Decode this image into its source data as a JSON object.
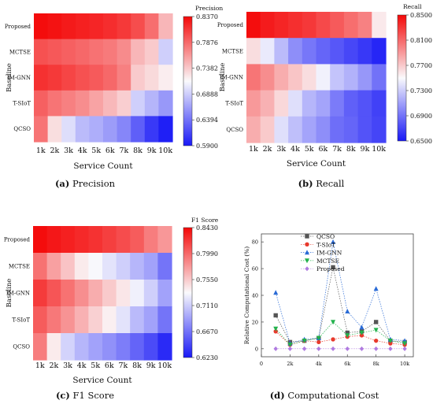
{
  "chart_data": [
    {
      "type": "heatmap",
      "panel_label": "(a)",
      "caption": "Precision",
      "colorbar_title": "Precision",
      "colorbar_ticks": [
        "0.8370",
        "0.7876",
        "0.7382",
        "0.6888",
        "0.6394",
        "0.5900"
      ],
      "range": [
        0.59,
        0.837
      ],
      "xlabel": "Service Count",
      "ylabel": "Baseline",
      "x": [
        "1k",
        "2k",
        "3k",
        "4k",
        "5k",
        "6k",
        "7k",
        "8k",
        "9k",
        "10k"
      ],
      "y": [
        "Proposed",
        "MCTSE",
        "IM-GNN",
        "T-SIoT",
        "QCSO"
      ],
      "values": [
        [
          0.835,
          0.832,
          0.828,
          0.825,
          0.822,
          0.818,
          0.812,
          0.802,
          0.785,
          0.748
        ],
        [
          0.8,
          0.796,
          0.792,
          0.788,
          0.783,
          0.779,
          0.77,
          0.748,
          0.738,
          0.69
        ],
        [
          0.816,
          0.812,
          0.806,
          0.8,
          0.795,
          0.788,
          0.776,
          0.738,
          0.73,
          0.72
        ],
        [
          0.792,
          0.782,
          0.776,
          0.769,
          0.758,
          0.747,
          0.736,
          0.69,
          0.676,
          0.66
        ],
        [
          0.782,
          0.728,
          0.698,
          0.679,
          0.672,
          0.662,
          0.65,
          0.629,
          0.608,
          0.594
        ]
      ]
    },
    {
      "type": "heatmap",
      "panel_label": "(b)",
      "caption": "Recall",
      "colorbar_title": "Recall",
      "colorbar_ticks": [
        "0.8500",
        "0.8100",
        "0.7700",
        "0.7300",
        "0.6900",
        "0.6500"
      ],
      "range": [
        0.65,
        0.85
      ],
      "xlabel": "Service Count",
      "ylabel": "Baseline",
      "x": [
        "1k",
        "2k",
        "3k",
        "4k",
        "5k",
        "6k",
        "7k",
        "8k",
        "9k",
        "10k"
      ],
      "y": [
        "Proposed",
        "MCTSE",
        "IM-GNN",
        "T-SIoT",
        "QCSO"
      ],
      "values": [
        [
          0.848,
          0.842,
          0.838,
          0.834,
          0.83,
          0.823,
          0.816,
          0.808,
          0.8,
          0.757
        ],
        [
          0.762,
          0.743,
          0.722,
          0.702,
          0.692,
          0.684,
          0.678,
          0.671,
          0.664,
          0.656
        ],
        [
          0.805,
          0.795,
          0.782,
          0.772,
          0.762,
          0.746,
          0.726,
          0.718,
          0.706,
          0.69
        ],
        [
          0.79,
          0.78,
          0.764,
          0.738,
          0.72,
          0.712,
          0.694,
          0.682,
          0.676,
          0.668
        ],
        [
          0.782,
          0.77,
          0.738,
          0.724,
          0.712,
          0.702,
          0.688,
          0.684,
          0.676,
          0.67
        ]
      ]
    },
    {
      "type": "heatmap",
      "panel_label": "(c)",
      "caption": "F1 Score",
      "colorbar_title": "F1 Score",
      "colorbar_ticks": [
        "0.8430",
        "0.7990",
        "0.7550",
        "0.7110",
        "0.6670",
        "0.6230"
      ],
      "range": [
        0.623,
        0.843
      ],
      "xlabel": "Service Count",
      "ylabel": "Baseline",
      "x": [
        "1k",
        "2k",
        "3k",
        "4k",
        "5k",
        "6k",
        "7k",
        "8k",
        "9k",
        "10k"
      ],
      "y": [
        "Proposed",
        "MCTSE",
        "IM-GNN",
        "T-SIoT",
        "QCSO"
      ],
      "values": [
        [
          0.841,
          0.836,
          0.832,
          0.828,
          0.824,
          0.818,
          0.812,
          0.805,
          0.79,
          0.778
        ],
        [
          0.795,
          0.774,
          0.758,
          0.74,
          0.732,
          0.722,
          0.712,
          0.7,
          0.69,
          0.668
        ],
        [
          0.82,
          0.808,
          0.795,
          0.782,
          0.768,
          0.755,
          0.742,
          0.728,
          0.712,
          0.69
        ],
        [
          0.805,
          0.792,
          0.78,
          0.766,
          0.752,
          0.738,
          0.722,
          0.702,
          0.69,
          0.668
        ],
        [
          0.79,
          0.74,
          0.714,
          0.7,
          0.69,
          0.682,
          0.672,
          0.66,
          0.648,
          0.632
        ]
      ]
    },
    {
      "type": "line",
      "panel_label": "(d)",
      "caption": "Computational Cost",
      "xlabel": "",
      "ylabel": "Relative Computational Cost (%)",
      "xlim": [
        0,
        10.6
      ],
      "ylim": [
        -6,
        86
      ],
      "xticks": [
        0,
        2,
        4,
        6,
        8,
        10
      ],
      "xtick_labels": [
        "0",
        "2k",
        "4k",
        "6k",
        "8k",
        "10k"
      ],
      "yticks": [
        0,
        20,
        40,
        60,
        80
      ],
      "ytick_labels": [
        "0",
        "20",
        "40",
        "60",
        "80"
      ],
      "x": [
        1,
        2,
        3,
        4,
        5,
        6,
        7,
        8,
        9,
        10
      ],
      "legend_position": "top-right",
      "series": [
        {
          "name": "QCSO",
          "color": "#555555",
          "marker": "square",
          "values": [
            25,
            5,
            6,
            8,
            61,
            12,
            13,
            20,
            6,
            5
          ]
        },
        {
          "name": "T-SIoT",
          "color": "#e8392c",
          "marker": "circle",
          "values": [
            13,
            3,
            6,
            5,
            7,
            9,
            10,
            6,
            4,
            3
          ]
        },
        {
          "name": "IM-GNN",
          "color": "#2a6bd6",
          "marker": "triangle-up",
          "values": [
            42,
            4,
            7,
            8,
            80,
            28,
            16,
            45,
            7,
            6
          ]
        },
        {
          "name": "MCTSE",
          "color": "#22b24c",
          "marker": "triangle-down",
          "values": [
            15,
            3,
            6,
            8,
            20,
            10,
            12,
            14,
            6,
            4
          ]
        },
        {
          "name": "Proposed",
          "color": "#b07be0",
          "marker": "diamond",
          "values": [
            0,
            0,
            0,
            0,
            0,
            0,
            0,
            0,
            0,
            0
          ]
        }
      ]
    }
  ]
}
